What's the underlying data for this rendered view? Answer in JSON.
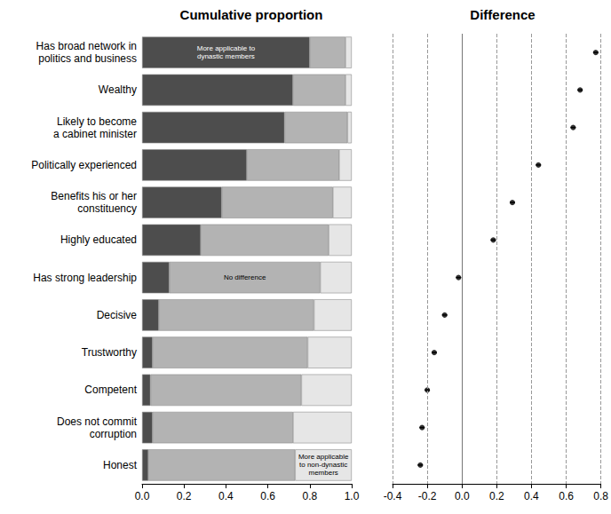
{
  "chart_data": [
    {
      "type": "bar",
      "title": "Cumulative proportion",
      "orientation": "horizontal",
      "stacked": true,
      "categories": [
        "Has broad network in\npolitics and business",
        "Wealthy",
        "Likely to become\na cabinet minister",
        "Politically experienced",
        "Benefits his or her\nconstituency",
        "Highly educated",
        "Has strong leadership",
        "Decisive",
        "Trustworthy",
        "Competent",
        "Does not commit\ncorruption",
        "Honest"
      ],
      "series": [
        {
          "color": "#4d4d4d",
          "values": [
            0.8,
            0.72,
            0.68,
            0.5,
            0.38,
            0.28,
            0.13,
            0.08,
            0.05,
            0.04,
            0.05,
            0.03
          ],
          "annotation": {
            "text": "More applicable to\ndynastic members",
            "category": "Has broad network in\npolitics and business"
          }
        },
        {
          "color": "#b3b3b3",
          "values": [
            0.17,
            0.25,
            0.3,
            0.44,
            0.53,
            0.61,
            0.72,
            0.74,
            0.74,
            0.72,
            0.67,
            0.7
          ],
          "annotation": {
            "text": "No difference",
            "category": "Has strong leadership"
          }
        },
        {
          "color": "#e6e6e6",
          "values": [
            0.03,
            0.03,
            0.02,
            0.06,
            0.09,
            0.11,
            0.15,
            0.18,
            0.21,
            0.24,
            0.28,
            0.27
          ],
          "annotation": {
            "text": "More applicable\nto non-dynastic\nmembers",
            "category": "Honest"
          }
        }
      ],
      "xlim": [
        0,
        1
      ],
      "xticks": [
        {
          "value": 0,
          "label": "0.0"
        },
        0.2,
        0.4,
        0.6,
        0.8,
        {
          "value": 1,
          "label": "1.0"
        }
      ]
    },
    {
      "type": "scatter",
      "title": "Difference",
      "categories": [
        "Has broad network in\npolitics and business",
        "Wealthy",
        "Likely to become\na cabinet minister",
        "Politically experienced",
        "Benefits his or her\nconstituency",
        "Highly educated",
        "Has strong leadership",
        "Decisive",
        "Trustworthy",
        "Competent",
        "Does not commit\ncorruption",
        "Honest"
      ],
      "values": [
        0.77,
        0.68,
        0.64,
        0.44,
        0.29,
        0.18,
        -0.02,
        -0.1,
        -0.16,
        -0.2,
        -0.23,
        -0.24
      ],
      "errors": [
        0.015,
        0.015,
        0.015,
        0.015,
        0.015,
        0.015,
        0.015,
        0.015,
        0.015,
        0.015,
        0.015,
        0.015
      ],
      "color": "#000000",
      "grid": true,
      "tick_labels": "x",
      "xlim": [
        -0.4,
        0.8
      ],
      "xticks": [
        -0.4,
        -0.2,
        {
          "value": 0,
          "label": "0.0"
        },
        0.2,
        0.4,
        0.6,
        0.8
      ]
    }
  ]
}
